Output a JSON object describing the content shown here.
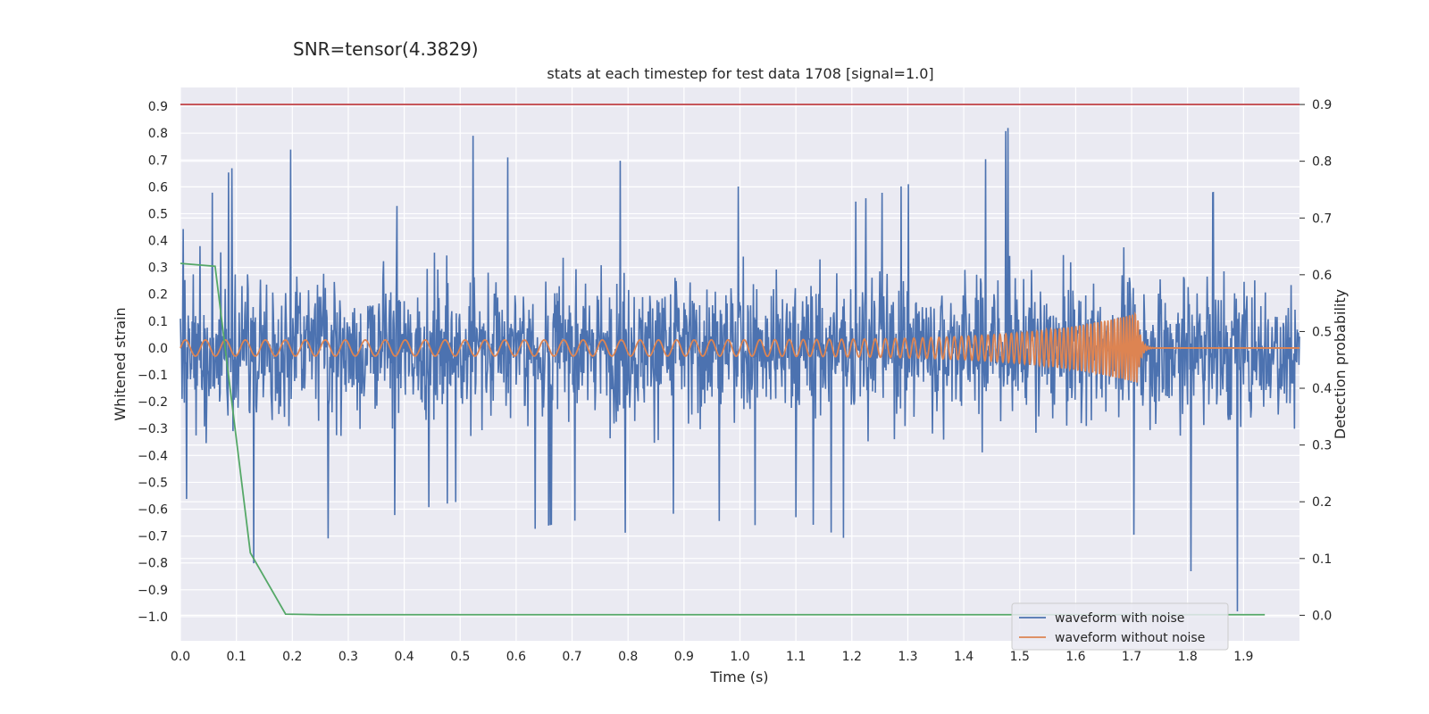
{
  "suptitle": "SNR=tensor(4.3829)",
  "chart_data": {
    "type": "line",
    "title": "stats at each timestep for test data 1708 [signal=1.0]",
    "xlabel": "Time (s)",
    "ylabel": "Whitened strain",
    "y2label": "Detection probability",
    "xlim": [
      0.0,
      2.0
    ],
    "ylim": [
      -1.09,
      0.97
    ],
    "y2lim": [
      -0.045,
      0.93
    ],
    "xticks": [
      "0.0",
      "0.1",
      "0.2",
      "0.3",
      "0.4",
      "0.5",
      "0.6",
      "0.7",
      "0.8",
      "0.9",
      "1.0",
      "1.1",
      "1.2",
      "1.3",
      "1.4",
      "1.5",
      "1.6",
      "1.7",
      "1.8",
      "1.9"
    ],
    "yticks": [
      "0.9",
      "0.8",
      "0.7",
      "0.6",
      "0.5",
      "0.4",
      "0.3",
      "0.2",
      "0.1",
      "0.0",
      "−0.1",
      "−0.2",
      "−0.3",
      "−0.4",
      "−0.5",
      "−0.6",
      "−0.7",
      "−0.8",
      "−0.9",
      "−1.0"
    ],
    "y2ticks": [
      "0.9",
      "0.8",
      "0.7",
      "0.6",
      "0.5",
      "0.4",
      "0.3",
      "0.2",
      "0.1",
      "0.0"
    ],
    "grid": true,
    "legend_position": "lower-right",
    "colors": {
      "noisy": "#4c72b0",
      "clean": "#dd8452",
      "probability": "#55a868",
      "threshold": "#c44e52",
      "axes_bg": "#eaeaf2",
      "grid": "#ffffff"
    },
    "series": [
      {
        "name": "waveform with noise",
        "axis": "left",
        "description_values": "noisy whitened strain sampled ~1024 Hz, amplitude mostly within [-0.7, 0.7]",
        "x": [
          0.0,
          0.1,
          0.2,
          0.3,
          0.4,
          0.5,
          0.6,
          0.7,
          0.8,
          0.9,
          1.0,
          1.1,
          1.2,
          1.3,
          1.4,
          1.5,
          1.6,
          1.7,
          1.8,
          1.9,
          2.0
        ],
        "envelope_max": [
          0.43,
          0.69,
          0.74,
          0.59,
          0.52,
          0.82,
          0.69,
          0.68,
          0.7,
          0.64,
          0.6,
          0.73,
          0.54,
          0.61,
          0.59,
          0.88,
          0.79,
          0.63,
          0.56,
          0.6,
          0.55
        ],
        "envelope_min": [
          -0.53,
          -0.82,
          -0.76,
          -0.68,
          -0.61,
          -0.57,
          -0.69,
          -0.64,
          -0.69,
          -0.6,
          -0.67,
          -0.63,
          -0.72,
          -0.73,
          -0.66,
          -0.66,
          -0.59,
          -0.69,
          -0.82,
          -1.0,
          -0.55
        ]
      },
      {
        "name": "waveform without noise",
        "axis": "left",
        "chirp": {
          "t_start": 0.0,
          "t_merge": 1.71,
          "f_start": 28,
          "f_end": 200,
          "amp_start": 0.03,
          "amp_peak": 0.13
        }
      },
      {
        "name": "detection probability",
        "axis": "right",
        "x": [
          0.0,
          0.062,
          0.125,
          0.188,
          0.25,
          0.312,
          0.375,
          0.438,
          0.5,
          0.562,
          0.625,
          0.688,
          0.75,
          0.812,
          0.875,
          0.938,
          1.0,
          1.062,
          1.125,
          1.188,
          1.25,
          1.312,
          1.375,
          1.438,
          1.5,
          1.562,
          1.625,
          1.688,
          1.75,
          1.812,
          1.875,
          1.938
        ],
        "values": [
          0.62,
          0.615,
          0.11,
          0.002,
          0.001,
          0.001,
          0.001,
          0.001,
          0.001,
          0.001,
          0.001,
          0.001,
          0.001,
          0.001,
          0.001,
          0.001,
          0.001,
          0.001,
          0.001,
          0.001,
          0.001,
          0.001,
          0.001,
          0.001,
          0.001,
          0.001,
          0.001,
          0.001,
          0.001,
          0.001,
          0.001,
          0.001
        ]
      },
      {
        "name": "threshold",
        "axis": "right",
        "value": 0.9
      }
    ]
  }
}
